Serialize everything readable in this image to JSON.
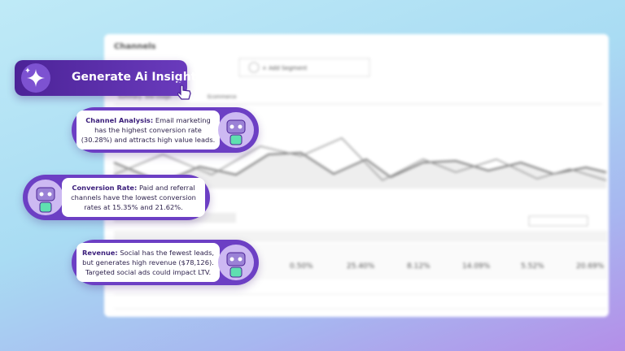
{
  "dashboard": {
    "title": "Channels",
    "segment": "+ Add Segment",
    "tabs": [
      "Summary",
      "Site Usage",
      "Ecommerce"
    ],
    "metrics": [
      "0.50%",
      "25.40%",
      "8.12%",
      "14.09%",
      "5.52%",
      "20.69%"
    ]
  },
  "button": {
    "label": "Generate Ai Insights"
  },
  "insights": [
    {
      "label": "Channel Analysis:",
      "text": "Email marketing has the highest conversion rate (30.28%) and attracts high value leads."
    },
    {
      "label": "Conversion Rate:",
      "text": "Paid and referral channels have the lowest conversion rates at 15.35% and 21.62%."
    },
    {
      "label": "Revenue:",
      "text": "Social has the fewest leads, but generates high revenue ($78,126). Targeted social ads could impact LTV."
    }
  ]
}
